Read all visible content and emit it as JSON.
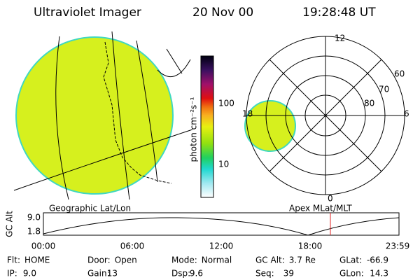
{
  "header": {
    "title": "Ultraviolet Imager",
    "date": "20 Nov 00",
    "time": "19:28:48 UT"
  },
  "colorbar": {
    "label": "photon cm⁻²s⁻¹",
    "ticks": [
      "100",
      "10"
    ]
  },
  "panels": {
    "left": "Geographic Lat/Lon",
    "right": "Apex MLat/MLT"
  },
  "polar": {
    "mlt": [
      "12",
      "18",
      "6",
      "0"
    ],
    "mlat": [
      "60",
      "70",
      "80"
    ]
  },
  "altitude": {
    "axis_label": "GC Alt",
    "yticks": [
      "9.0",
      "1.8"
    ],
    "xticks": [
      "00:00",
      "06:00",
      "12:00",
      "18:00",
      "23:59"
    ]
  },
  "footer": [
    [
      {
        "label": "Flt:",
        "value": "HOME"
      },
      {
        "label": "Door:",
        "value": "Open"
      },
      {
        "label": "Mode:",
        "value": "Normal"
      },
      {
        "label": "GC Alt:",
        "value": "3.7 Re"
      },
      {
        "label": "GLat:",
        "value": "-66.9"
      }
    ],
    [
      {
        "label": "IP:",
        "value": "9.0"
      },
      {
        "label": "Gain:",
        "value": "13"
      },
      {
        "label": "Dsp:",
        "value": "9.6"
      },
      {
        "label": "Seq:",
        "value": "39"
      },
      {
        "label": "GLon:",
        "value": "14.3"
      }
    ]
  ]
}
